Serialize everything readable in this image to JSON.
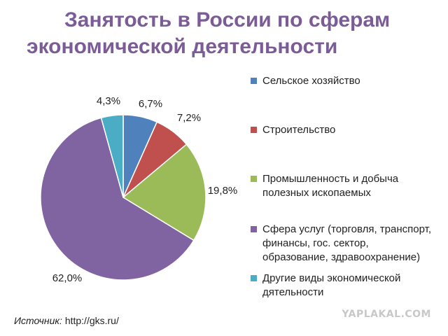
{
  "title": {
    "line1": "Занятость в России по сферам",
    "line2": "экономической деятельности"
  },
  "source": {
    "label": "Источник:",
    "url": "http://gks.ru/"
  },
  "watermark": "YAPLAKAL.COM",
  "chart_data": {
    "type": "pie",
    "title": "Занятость в России по сферам экономической деятельности",
    "legend_position": "right",
    "slices": [
      {
        "label": "Сельское хозяйство",
        "value": 6.7,
        "display": "6,7%",
        "color": "#4f81bd"
      },
      {
        "label": "Строительство",
        "value": 7.2,
        "display": "7,2%",
        "color": "#c0504d"
      },
      {
        "label": "Промышленность и добыча\nполезных ископаемых",
        "value": 19.8,
        "display": "19,8%",
        "color": "#9bbb59"
      },
      {
        "label": "Сфера услуг (торговля, транспорт,\nфинансы, гос. сектор,\nобразование, здравоохранение)",
        "value": 62.0,
        "display": "62,0%",
        "color": "#8064a2"
      },
      {
        "label": "Другие виды экономической\nдятельности",
        "value": 4.3,
        "display": "4,3%",
        "color": "#4bacc6"
      }
    ]
  }
}
